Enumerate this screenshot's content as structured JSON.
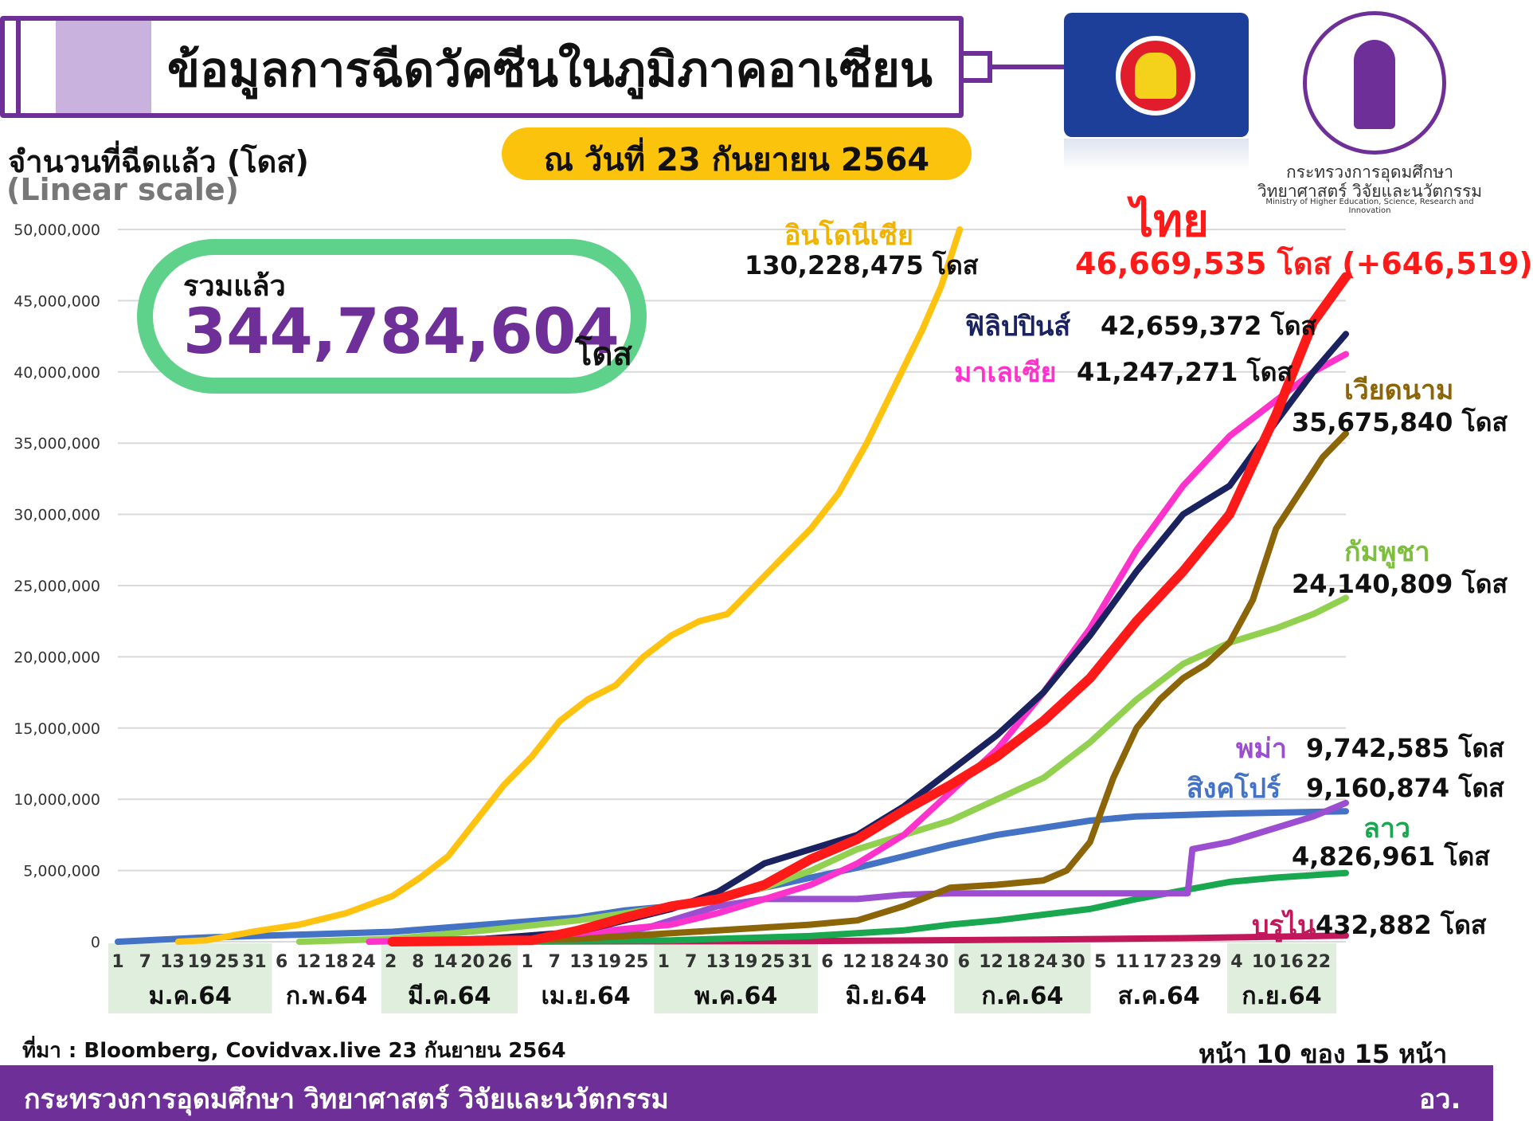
{
  "header": {
    "title": "ข้อมูลการฉีดวัคซีนในภูมิภาคอาเซียน",
    "date": "ณ วันที่ 23 กันยายน 2564"
  },
  "ministry_logo": {
    "name_th_line1": "กระทรวงการอุดมศึกษา",
    "name_th_line2": "วิทยาศาสตร์ วิจัยและนวัตกรรม",
    "name_en": "Ministry of Higher Education, Science, Research and Innovation"
  },
  "total": {
    "label": "รวมแล้ว",
    "value": "344,784,604",
    "unit": "โดส"
  },
  "source": "ที่มา : Bloomberg, Covidvax.live 23 กันยายน 2564",
  "page_number": "หน้า 10 ของ 15 หน้า",
  "footer": {
    "left": "กระทรวงการอุดมศึกษา วิทยาศาสตร์ วิจัยและนวัตกรรม",
    "right": "อว."
  },
  "chart_data": {
    "type": "line",
    "ylabel": "จำนวนที่ฉีดแล้ว (โดส)",
    "yscale_note": "(Linear scale)",
    "ylim": [
      0,
      50000000
    ],
    "yticks": [
      "50,000,000",
      "45,000,000",
      "40,000,000",
      "35,000,000",
      "30,000,000",
      "25,000,000",
      "20,000,000",
      "15,000,000",
      "10,000,000",
      "5,000,000",
      "0"
    ],
    "x_range_days": [
      1,
      265
    ],
    "month_day_ticks": [
      {
        "month": "ม.ค.64",
        "days": [
          "1",
          "7",
          "13",
          "19",
          "25",
          "31"
        ],
        "shaded": true
      },
      {
        "month": "ก.พ.64",
        "days": [
          "6",
          "12",
          "18",
          "24"
        ],
        "shaded": false
      },
      {
        "month": "มี.ค.64",
        "days": [
          "2",
          "8",
          "14",
          "20",
          "26"
        ],
        "shaded": true
      },
      {
        "month": "เม.ย.64",
        "days": [
          "1",
          "7",
          "13",
          "19",
          "25"
        ],
        "shaded": false
      },
      {
        "month": "พ.ค.64",
        "days": [
          "1",
          "7",
          "13",
          "19",
          "25",
          "31"
        ],
        "shaded": true
      },
      {
        "month": "มิ.ย.64",
        "days": [
          "6",
          "12",
          "18",
          "24",
          "30"
        ],
        "shaded": false
      },
      {
        "month": "ก.ค.64",
        "days": [
          "6",
          "12",
          "18",
          "24",
          "30"
        ],
        "shaded": true
      },
      {
        "month": "ส.ค.64",
        "days": [
          "5",
          "11",
          "17",
          "23",
          "29"
        ],
        "shaded": false
      },
      {
        "month": "ก.ย.64",
        "days": [
          "4",
          "10",
          "16",
          "22"
        ],
        "shaded": true
      }
    ],
    "grid": true,
    "series": [
      {
        "name": "อินโดนีเซีย",
        "color": "#ffc20e",
        "label_value": "130,228,475 โดส",
        "points": [
          [
            14,
            0
          ],
          [
            20,
            100000
          ],
          [
            30,
            700000
          ],
          [
            40,
            1200000
          ],
          [
            50,
            2000000
          ],
          [
            60,
            3200000
          ],
          [
            66,
            4500000
          ],
          [
            72,
            6000000
          ],
          [
            78,
            8500000
          ],
          [
            84,
            11000000
          ],
          [
            90,
            13000000
          ],
          [
            96,
            15500000
          ],
          [
            102,
            17000000
          ],
          [
            108,
            18000000
          ],
          [
            114,
            20000000
          ],
          [
            120,
            21500000
          ],
          [
            126,
            22500000
          ],
          [
            132,
            23000000
          ],
          [
            138,
            25000000
          ],
          [
            144,
            27000000
          ],
          [
            150,
            29000000
          ],
          [
            156,
            31500000
          ],
          [
            162,
            35000000
          ],
          [
            168,
            39000000
          ],
          [
            174,
            43000000
          ],
          [
            178,
            46000000
          ],
          [
            182,
            50000000
          ]
        ]
      },
      {
        "name": "ไทย",
        "color": "#ff1a1a",
        "label_value": "46,669,535 โดส (+646,519)",
        "points": [
          [
            60,
            0
          ],
          [
            90,
            100000
          ],
          [
            100,
            800000
          ],
          [
            110,
            1700000
          ],
          [
            120,
            2500000
          ],
          [
            130,
            3000000
          ],
          [
            140,
            4000000
          ],
          [
            150,
            5800000
          ],
          [
            160,
            7200000
          ],
          [
            170,
            9200000
          ],
          [
            180,
            11000000
          ],
          [
            190,
            13000000
          ],
          [
            200,
            15500000
          ],
          [
            210,
            18500000
          ],
          [
            220,
            22500000
          ],
          [
            230,
            26000000
          ],
          [
            240,
            30000000
          ],
          [
            250,
            37000000
          ],
          [
            258,
            43500000
          ],
          [
            265,
            46669535
          ]
        ]
      },
      {
        "name": "ฟิลิปปินส์",
        "color": "#1a2260",
        "label_value": "42,659,372 โดส",
        "points": [
          [
            60,
            0
          ],
          [
            80,
            200000
          ],
          [
            100,
            700000
          ],
          [
            110,
            1500000
          ],
          [
            120,
            2300000
          ],
          [
            130,
            3500000
          ],
          [
            140,
            5500000
          ],
          [
            150,
            6500000
          ],
          [
            160,
            7500000
          ],
          [
            170,
            9500000
          ],
          [
            180,
            12000000
          ],
          [
            190,
            14500000
          ],
          [
            200,
            17500000
          ],
          [
            210,
            21500000
          ],
          [
            220,
            26000000
          ],
          [
            230,
            30000000
          ],
          [
            240,
            32000000
          ],
          [
            250,
            36500000
          ],
          [
            258,
            40000000
          ],
          [
            265,
            42659372
          ]
        ]
      },
      {
        "name": "มาเลเซีย",
        "color": "#ff33cc",
        "label_value": "41,247,271 โดส",
        "points": [
          [
            55,
            0
          ],
          [
            80,
            200000
          ],
          [
            100,
            600000
          ],
          [
            120,
            1200000
          ],
          [
            130,
            2000000
          ],
          [
            140,
            3000000
          ],
          [
            150,
            4000000
          ],
          [
            160,
            5500000
          ],
          [
            170,
            7500000
          ],
          [
            180,
            10500000
          ],
          [
            190,
            13500000
          ],
          [
            200,
            17500000
          ],
          [
            210,
            22000000
          ],
          [
            220,
            27500000
          ],
          [
            230,
            32000000
          ],
          [
            240,
            35500000
          ],
          [
            250,
            38000000
          ],
          [
            258,
            40000000
          ],
          [
            265,
            41247271
          ]
        ]
      },
      {
        "name": "เวียดนาม",
        "color": "#8b6508",
        "label_value": "35,675,840 โดส",
        "points": [
          [
            60,
            0
          ],
          [
            100,
            200000
          ],
          [
            130,
            800000
          ],
          [
            150,
            1200000
          ],
          [
            160,
            1500000
          ],
          [
            170,
            2500000
          ],
          [
            180,
            3800000
          ],
          [
            190,
            4000000
          ],
          [
            200,
            4300000
          ],
          [
            205,
            5000000
          ],
          [
            210,
            7000000
          ],
          [
            215,
            11500000
          ],
          [
            220,
            15000000
          ],
          [
            225,
            17000000
          ],
          [
            230,
            18500000
          ],
          [
            235,
            19500000
          ],
          [
            240,
            21000000
          ],
          [
            245,
            24000000
          ],
          [
            250,
            29000000
          ],
          [
            255,
            31500000
          ],
          [
            260,
            34000000
          ],
          [
            265,
            35675840
          ]
        ]
      },
      {
        "name": "กัมพูชา",
        "color": "#92d050",
        "label_value": "24,140,809 โดส",
        "points": [
          [
            40,
            0
          ],
          [
            60,
            200000
          ],
          [
            80,
            800000
          ],
          [
            100,
            1500000
          ],
          [
            120,
            2500000
          ],
          [
            140,
            3800000
          ],
          [
            150,
            5000000
          ],
          [
            160,
            6500000
          ],
          [
            170,
            7500000
          ],
          [
            180,
            8500000
          ],
          [
            190,
            10000000
          ],
          [
            200,
            11500000
          ],
          [
            210,
            14000000
          ],
          [
            220,
            17000000
          ],
          [
            230,
            19500000
          ],
          [
            240,
            21000000
          ],
          [
            250,
            22000000
          ],
          [
            258,
            23000000
          ],
          [
            265,
            24140809
          ]
        ]
      },
      {
        "name": "พม่า",
        "color": "#9b4fd0",
        "label_value": "9,742,585 โดส",
        "points": [
          [
            60,
            0
          ],
          [
            100,
            200000
          ],
          [
            115,
            1000000
          ],
          [
            130,
            2500000
          ],
          [
            140,
            3000000
          ],
          [
            160,
            3000000
          ],
          [
            170,
            3300000
          ],
          [
            180,
            3400000
          ],
          [
            190,
            3400000
          ],
          [
            200,
            3400000
          ],
          [
            210,
            3400000
          ],
          [
            220,
            3400000
          ],
          [
            231,
            3400000
          ],
          [
            232,
            6500000
          ],
          [
            240,
            7000000
          ],
          [
            250,
            8000000
          ],
          [
            258,
            8800000
          ],
          [
            265,
            9742585
          ]
        ]
      },
      {
        "name": "สิงคโปร์",
        "color": "#4472c4",
        "label_value": "9,160,874 โดส",
        "points": [
          [
            1,
            0
          ],
          [
            20,
            300000
          ],
          [
            40,
            500000
          ],
          [
            60,
            700000
          ],
          [
            80,
            1200000
          ],
          [
            100,
            1700000
          ],
          [
            110,
            2200000
          ],
          [
            120,
            2500000
          ],
          [
            130,
            3000000
          ],
          [
            140,
            3800000
          ],
          [
            150,
            4500000
          ],
          [
            160,
            5200000
          ],
          [
            170,
            6000000
          ],
          [
            180,
            6800000
          ],
          [
            190,
            7500000
          ],
          [
            200,
            8000000
          ],
          [
            210,
            8500000
          ],
          [
            220,
            8800000
          ],
          [
            240,
            9000000
          ],
          [
            265,
            9160874
          ]
        ]
      },
      {
        "name": "ลาว",
        "color": "#19a850",
        "label_value": "4,826,961 โดส",
        "points": [
          [
            60,
            0
          ],
          [
            120,
            100000
          ],
          [
            150,
            400000
          ],
          [
            170,
            800000
          ],
          [
            180,
            1200000
          ],
          [
            190,
            1500000
          ],
          [
            200,
            1900000
          ],
          [
            210,
            2300000
          ],
          [
            220,
            3000000
          ],
          [
            230,
            3600000
          ],
          [
            240,
            4200000
          ],
          [
            250,
            4500000
          ],
          [
            265,
            4826961
          ]
        ]
      },
      {
        "name": "บรูไน",
        "color": "#c2185b",
        "label_value": "432,882 โดส",
        "points": [
          [
            60,
            0
          ],
          [
            150,
            50000
          ],
          [
            200,
            150000
          ],
          [
            230,
            250000
          ],
          [
            265,
            432882
          ]
        ]
      }
    ]
  }
}
